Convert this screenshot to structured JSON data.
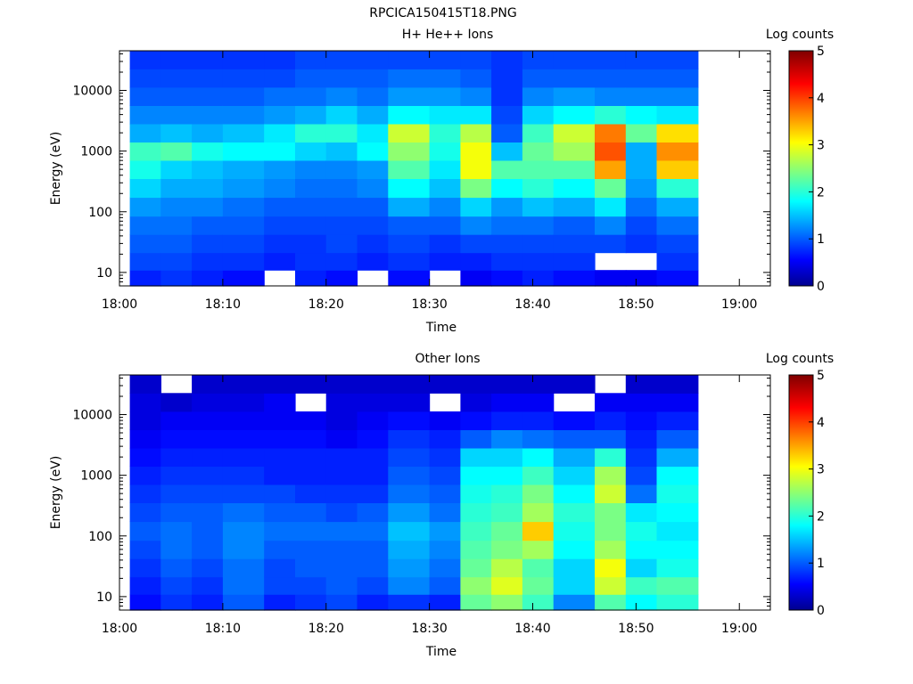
{
  "figure_title": "RPCICA150415T18.PNG",
  "chart_data": [
    {
      "type": "heatmap",
      "title": "H+ He++ Ions",
      "xlabel": "Time",
      "ylabel": "Energy (eV)",
      "colorbar_label": "Log counts",
      "x_scale": "time",
      "y_scale": "log",
      "xlim": [
        "18:00",
        "19:03"
      ],
      "ylim": [
        6,
        45000
      ],
      "xticks": [
        "18:00",
        "18:10",
        "18:20",
        "18:30",
        "18:40",
        "18:50",
        "19:00"
      ],
      "yticks": [
        "10",
        "100",
        "1000",
        "10000"
      ],
      "colorbar_range": [
        0,
        5
      ],
      "colorbar_ticks": [
        "0",
        "1",
        "2",
        "3",
        "4",
        "5"
      ],
      "colormap": "jet",
      "time_bins_start": [
        "18:01",
        "18:04",
        "18:07",
        "18:10",
        "18:14",
        "18:17",
        "18:20",
        "18:23",
        "18:26",
        "18:30",
        "18:33",
        "18:36",
        "18:39",
        "18:42",
        "18:46",
        "18:49",
        "18:52"
      ],
      "time_bins_end": [
        "18:04",
        "18:07",
        "18:10",
        "18:14",
        "18:17",
        "18:20",
        "18:23",
        "18:26",
        "18:30",
        "18:33",
        "18:36",
        "18:39",
        "18:42",
        "18:46",
        "18:49",
        "18:52",
        "18:56"
      ],
      "energy_bands_ev": [
        8,
        15,
        30,
        60,
        120,
        250,
        500,
        1000,
        2000,
        4000,
        8000,
        16000,
        32000
      ],
      "values": [
        [
          0.7,
          0.8,
          0.7,
          0.6,
          0.6,
          0.7,
          0.6,
          0.5,
          0.6,
          0.5,
          0.5,
          0.6,
          0.7,
          0.6,
          0.5,
          0.5,
          0.6
        ],
        [
          0.9,
          0.9,
          0.8,
          0.8,
          0.7,
          0.8,
          0.8,
          0.7,
          0.8,
          0.7,
          0.7,
          0.8,
          0.8,
          0.8,
          0.7,
          0.7,
          0.8
        ],
        [
          1.0,
          1.0,
          0.9,
          0.9,
          0.8,
          0.8,
          0.9,
          0.8,
          0.9,
          0.8,
          0.9,
          0.9,
          0.9,
          0.9,
          0.9,
          0.8,
          0.9
        ],
        [
          1.1,
          1.1,
          1.0,
          1.0,
          0.9,
          0.9,
          0.9,
          0.9,
          1.0,
          1.0,
          1.2,
          1.1,
          1.1,
          1.0,
          1.2,
          0.9,
          1.1
        ],
        [
          1.3,
          1.2,
          1.2,
          1.1,
          1.0,
          1.0,
          1.0,
          1.0,
          1.4,
          1.2,
          1.6,
          1.3,
          1.5,
          1.4,
          1.7,
          1.1,
          1.4
        ],
        [
          1.6,
          1.4,
          1.4,
          1.3,
          1.2,
          1.1,
          1.1,
          1.2,
          1.8,
          1.5,
          2.4,
          1.8,
          2.0,
          1.8,
          2.3,
          1.3,
          2.0
        ],
        [
          1.9,
          1.6,
          1.5,
          1.4,
          1.3,
          1.2,
          1.2,
          1.3,
          2.2,
          1.7,
          3.0,
          2.2,
          2.2,
          2.2,
          3.5,
          1.4,
          3.3
        ],
        [
          2.1,
          2.2,
          1.9,
          1.8,
          1.8,
          1.6,
          1.5,
          1.8,
          2.5,
          1.9,
          3.0,
          1.5,
          2.3,
          2.6,
          3.9,
          1.4,
          3.6
        ],
        [
          1.4,
          1.5,
          1.4,
          1.5,
          1.7,
          2.0,
          2.0,
          1.7,
          2.8,
          2.0,
          2.7,
          1.0,
          2.1,
          2.8,
          3.7,
          2.3,
          3.2
        ],
        [
          1.2,
          1.2,
          1.2,
          1.2,
          1.3,
          1.4,
          1.6,
          1.4,
          1.8,
          1.7,
          1.7,
          0.9,
          1.6,
          1.8,
          2.0,
          1.8,
          1.7
        ],
        [
          1.0,
          1.0,
          1.0,
          1.0,
          1.1,
          1.1,
          1.2,
          1.1,
          1.3,
          1.3,
          1.2,
          0.8,
          1.2,
          1.3,
          1.2,
          1.2,
          1.2
        ],
        [
          0.9,
          0.9,
          0.9,
          0.9,
          0.9,
          1.0,
          1.0,
          1.0,
          1.1,
          1.1,
          1.0,
          0.8,
          1.0,
          1.0,
          1.0,
          1.0,
          1.0
        ],
        [
          0.8,
          0.8,
          0.8,
          0.8,
          0.8,
          0.9,
          0.9,
          0.9,
          0.9,
          0.9,
          0.9,
          0.8,
          0.9,
          0.9,
          0.9,
          0.9,
          0.9
        ]
      ],
      "empty_cells": [
        {
          "time_bin": "18:14",
          "energy_ev": 8
        },
        {
          "time_bin": "18:23",
          "energy_ev": 8
        },
        {
          "time_bin": "18:30",
          "energy_ev": 8
        },
        {
          "time_bin": "18:46",
          "energy_ev": 15
        },
        {
          "time_bin": "18:49",
          "energy_ev": 15
        }
      ]
    },
    {
      "type": "heatmap",
      "title": "Other Ions",
      "xlabel": "Time",
      "ylabel": "Energy (eV)",
      "colorbar_label": "Log counts",
      "x_scale": "time",
      "y_scale": "log",
      "xlim": [
        "18:00",
        "19:03"
      ],
      "ylim": [
        6,
        45000
      ],
      "xticks": [
        "18:00",
        "18:10",
        "18:20",
        "18:30",
        "18:40",
        "18:50",
        "19:00"
      ],
      "yticks": [
        "10",
        "100",
        "1000",
        "10000"
      ],
      "colorbar_range": [
        0,
        5
      ],
      "colorbar_ticks": [
        "0",
        "1",
        "2",
        "3",
        "4",
        "5"
      ],
      "colormap": "jet",
      "time_bins_start": [
        "18:01",
        "18:04",
        "18:07",
        "18:10",
        "18:14",
        "18:17",
        "18:20",
        "18:23",
        "18:26",
        "18:30",
        "18:33",
        "18:36",
        "18:39",
        "18:42",
        "18:46",
        "18:49",
        "18:52"
      ],
      "time_bins_end": [
        "18:04",
        "18:07",
        "18:10",
        "18:14",
        "18:17",
        "18:20",
        "18:23",
        "18:26",
        "18:30",
        "18:33",
        "18:36",
        "18:39",
        "18:42",
        "18:46",
        "18:49",
        "18:52",
        "18:56"
      ],
      "energy_bands_ev": [
        8,
        15,
        30,
        60,
        120,
        250,
        500,
        1000,
        2000,
        4000,
        8000,
        16000,
        32000
      ],
      "values": [
        [
          0.6,
          0.8,
          0.7,
          1.0,
          0.7,
          0.8,
          0.9,
          0.7,
          0.8,
          0.7,
          2.3,
          2.5,
          2.1,
          1.2,
          2.2,
          1.8,
          2.0
        ],
        [
          0.7,
          0.9,
          0.8,
          1.1,
          0.9,
          0.9,
          1.0,
          0.9,
          1.2,
          1.0,
          2.5,
          2.9,
          2.3,
          1.6,
          2.8,
          2.1,
          2.2
        ],
        [
          0.8,
          1.0,
          0.9,
          1.1,
          0.9,
          1.0,
          1.0,
          1.0,
          1.3,
          1.1,
          2.3,
          2.7,
          2.2,
          1.6,
          3.0,
          1.6,
          1.9
        ],
        [
          0.9,
          1.1,
          1.0,
          1.2,
          1.0,
          1.0,
          1.0,
          1.0,
          1.4,
          1.2,
          2.2,
          2.4,
          2.6,
          1.8,
          2.6,
          1.8,
          1.8
        ],
        [
          1.0,
          1.1,
          1.0,
          1.2,
          1.1,
          1.1,
          1.1,
          1.1,
          1.5,
          1.3,
          2.1,
          2.3,
          3.3,
          1.9,
          2.4,
          1.9,
          1.7
        ],
        [
          0.9,
          1.0,
          1.0,
          1.1,
          1.0,
          1.0,
          0.9,
          1.0,
          1.3,
          1.1,
          2.0,
          2.1,
          2.6,
          2.0,
          2.4,
          1.7,
          1.8
        ],
        [
          0.8,
          0.9,
          0.9,
          0.9,
          0.9,
          0.8,
          0.8,
          0.8,
          1.1,
          1.0,
          1.9,
          2.0,
          2.4,
          1.8,
          2.8,
          1.1,
          1.9
        ],
        [
          0.7,
          0.8,
          0.8,
          0.8,
          0.7,
          0.7,
          0.7,
          0.7,
          1.0,
          0.9,
          1.8,
          1.8,
          2.1,
          1.6,
          2.6,
          0.9,
          1.8
        ],
        [
          0.6,
          0.7,
          0.7,
          0.7,
          0.7,
          0.7,
          0.7,
          0.7,
          0.9,
          0.8,
          1.6,
          1.6,
          1.8,
          1.4,
          2.0,
          0.8,
          1.4
        ],
        [
          0.5,
          0.6,
          0.6,
          0.6,
          0.6,
          0.6,
          0.5,
          0.6,
          0.8,
          0.7,
          1.0,
          1.2,
          1.1,
          1.0,
          1.0,
          0.7,
          1.0
        ],
        [
          0.4,
          0.5,
          0.5,
          0.5,
          0.5,
          0.5,
          0.4,
          0.5,
          0.6,
          0.5,
          0.6,
          0.7,
          0.7,
          0.6,
          0.7,
          0.6,
          0.7
        ],
        [
          0.4,
          0.3,
          0.4,
          0.4,
          0.5,
          0.4,
          0.4,
          0.4,
          0.4,
          0.4,
          0.4,
          0.5,
          0.5,
          0.4,
          0.5,
          0.5,
          0.5
        ],
        [
          0.3,
          0.3,
          0.3,
          0.3,
          0.3,
          0.3,
          0.3,
          0.3,
          0.3,
          0.3,
          0.3,
          0.3,
          0.3,
          0.3,
          0.3,
          0.3,
          0.3
        ]
      ],
      "empty_cells": [
        {
          "time_bin": "18:04",
          "energy_ev": 32000
        },
        {
          "time_bin": "18:17",
          "energy_ev": 16000
        },
        {
          "time_bin": "18:30",
          "energy_ev": 16000
        },
        {
          "time_bin": "18:42",
          "energy_ev": 16000
        },
        {
          "time_bin": "18:46",
          "energy_ev": 32000
        }
      ]
    }
  ]
}
